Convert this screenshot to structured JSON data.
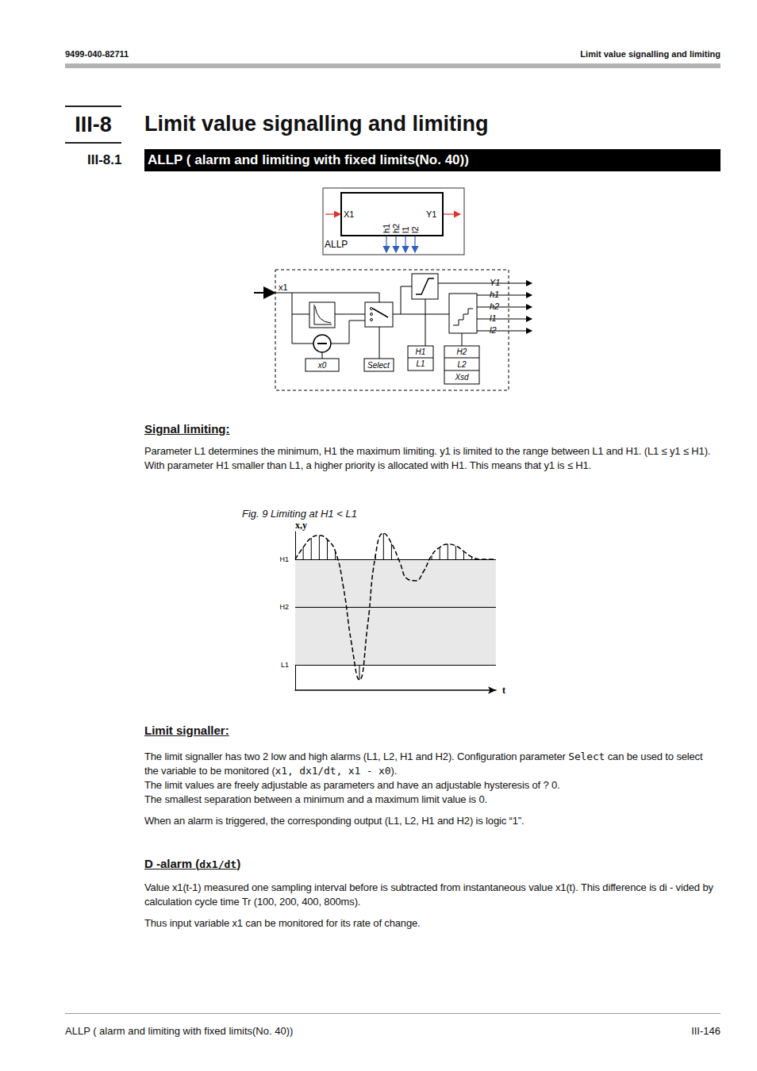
{
  "header": {
    "doc_number": "9499-040-82711",
    "running_title": "Limit value signalling and limiting"
  },
  "chapter": {
    "number": "III-8",
    "title": "Limit value signalling and limiting"
  },
  "section": {
    "number": "III-8.1",
    "title": "ALLP ( alarm and limiting with fixed limits(No. 40))"
  },
  "block_diagram": {
    "symbol": {
      "name": "ALLP",
      "input": "X1",
      "output": "Y1",
      "binary_outputs": [
        "h1",
        "h2",
        "l1",
        "l2"
      ]
    },
    "schematic": {
      "input": "x1",
      "x0_label": "x0",
      "select_label": "Select",
      "limit_box": [
        "H1",
        "L1"
      ],
      "alarm_box": [
        "H2",
        "L2",
        "Xsd"
      ],
      "outputs": [
        "Y1",
        "h1",
        "h2",
        "l1",
        "l2"
      ]
    }
  },
  "signal_limiting": {
    "heading": "Signal limiting:",
    "paragraphs": [
      [
        "Parameter L1 determines the minimum, H1 the maximum limiting. y1 is limited to the range between L1 and H1. (L1 ≤ y1 ≤ H1). With parameter H1 smaller than L1, a higher priority is allocated with H1. This means that y1 is ≤ H1."
      ]
    ]
  },
  "chart_data": {
    "type": "line",
    "caption": "Fig. 9  Limiting at H1 < L1",
    "x_label": "t",
    "y_label": "x,y",
    "x": [
      0,
      1,
      2,
      3,
      4,
      5,
      6,
      7,
      8,
      9,
      10,
      11,
      12,
      13,
      14,
      15,
      16,
      17,
      18,
      19,
      20,
      21,
      22,
      23,
      24,
      25
    ],
    "values": [
      16.5,
      18,
      19.2,
      19.5,
      19,
      17.5,
      13,
      6,
      1.3,
      8,
      17,
      19.8,
      18.5,
      16.2,
      14,
      13.8,
      15,
      17,
      18,
      18.4,
      18.2,
      17.5,
      16.8,
      16.5,
      16.5,
      16.5
    ],
    "xlim": [
      0,
      25
    ],
    "ylim": [
      0,
      20
    ],
    "yticks": [
      {
        "value": 3.2,
        "label": "L1"
      },
      {
        "value": 10.5,
        "label": "H2"
      },
      {
        "value": 16.5,
        "label": "H1"
      }
    ],
    "tick_labels": "y",
    "grid": true,
    "line_style": "dashed",
    "color": "#000000"
  },
  "limit_signaller": {
    "heading": "Limit signaller:",
    "paragraphs": [
      [
        "The limit signaller has two 2 low and high alarms (L1, L2, H1 and  H2). Configuration parameter ",
        {
          "code": "Select"
        },
        " can be used to select the variable to be monitored (",
        {
          "code": "x1, dx1/dt, x1 - x0"
        },
        ")."
      ],
      [
        "The limit values are freely adjustable as parameters and have an adjustable hysteresis of ? 0."
      ],
      [
        "The smallest separation between a minimum and a maximum limit value is 0."
      ],
      [
        "When an alarm is triggered, the corresponding output (L1, L2, H1 and H2) is logic “1”."
      ]
    ]
  },
  "d_alarm": {
    "heading": [
      "D -alarm (",
      {
        "code": "dx1/dt"
      },
      ")"
    ],
    "paragraphs": [
      [
        "Value x1(t-1) measured one sampling interval before is  subtracted from instantaneous value x1(t). This difference is di - vided by calculation cycle time Tr (100, 200, 400, 800ms)."
      ],
      [
        "Thus input variable x1 can be monitored for its rate of change."
      ]
    ]
  },
  "footer": {
    "left": "ALLP ( alarm and limiting with fixed limits(No. 40))",
    "page": "III-146"
  }
}
